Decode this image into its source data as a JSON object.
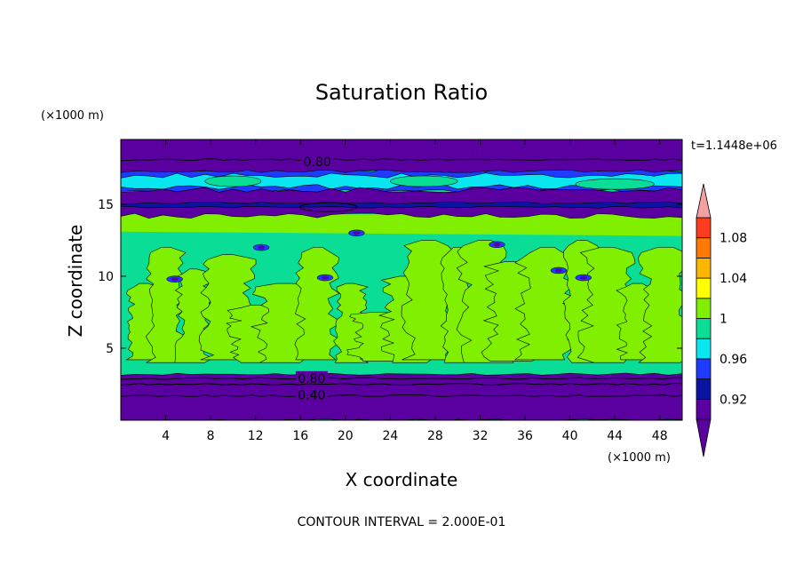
{
  "chart_data": {
    "type": "heatmap",
    "title": "Saturation Ratio",
    "xlabel": "X coordinate",
    "ylabel": "Z coordinate",
    "x_unit": "(×1000 m)",
    "y_unit": "(×1000 m)",
    "time_label": "t=1.1448e+06",
    "footer": "CONTOUR INTERVAL = 2.000E-01",
    "xlim": [
      0,
      50
    ],
    "ylim": [
      0,
      19.5
    ],
    "x_ticks": [
      4,
      8,
      12,
      16,
      20,
      24,
      28,
      32,
      36,
      40,
      44,
      48
    ],
    "y_ticks": [
      5,
      10,
      15
    ],
    "contour_labels": [
      {
        "text": "0.80",
        "x": 17.5,
        "y": 17.9
      },
      {
        "text": "0.80",
        "x": 17,
        "y": 2.85
      },
      {
        "text": "0.40",
        "x": 17,
        "y": 1.7
      }
    ],
    "colorbar": {
      "levels": [
        0.92,
        0.94,
        0.96,
        0.98,
        1.0,
        1.02,
        1.04,
        1.06,
        1.08,
        1.1
      ],
      "tick_labels": [
        "0.92",
        "0.96",
        "1",
        "1.04",
        "1.08"
      ],
      "colors": [
        "#5a00a0",
        "#0a14a0",
        "#1e3cff",
        "#0ae6f0",
        "#0ade96",
        "#80f000",
        "#ffff00",
        "#ffb400",
        "#ff7800",
        "#ff3c1e",
        "#ec1414"
      ],
      "over_color": "#f4a0a0",
      "under_color": "#5a00a0"
    },
    "colors": {
      "dry_layer": "#5a00a0",
      "deep_blue": "#0a14a0",
      "blue": "#1e3cff",
      "cyan": "#0ae6f0",
      "sea_green": "#0ade96",
      "lime": "#80f000"
    }
  }
}
